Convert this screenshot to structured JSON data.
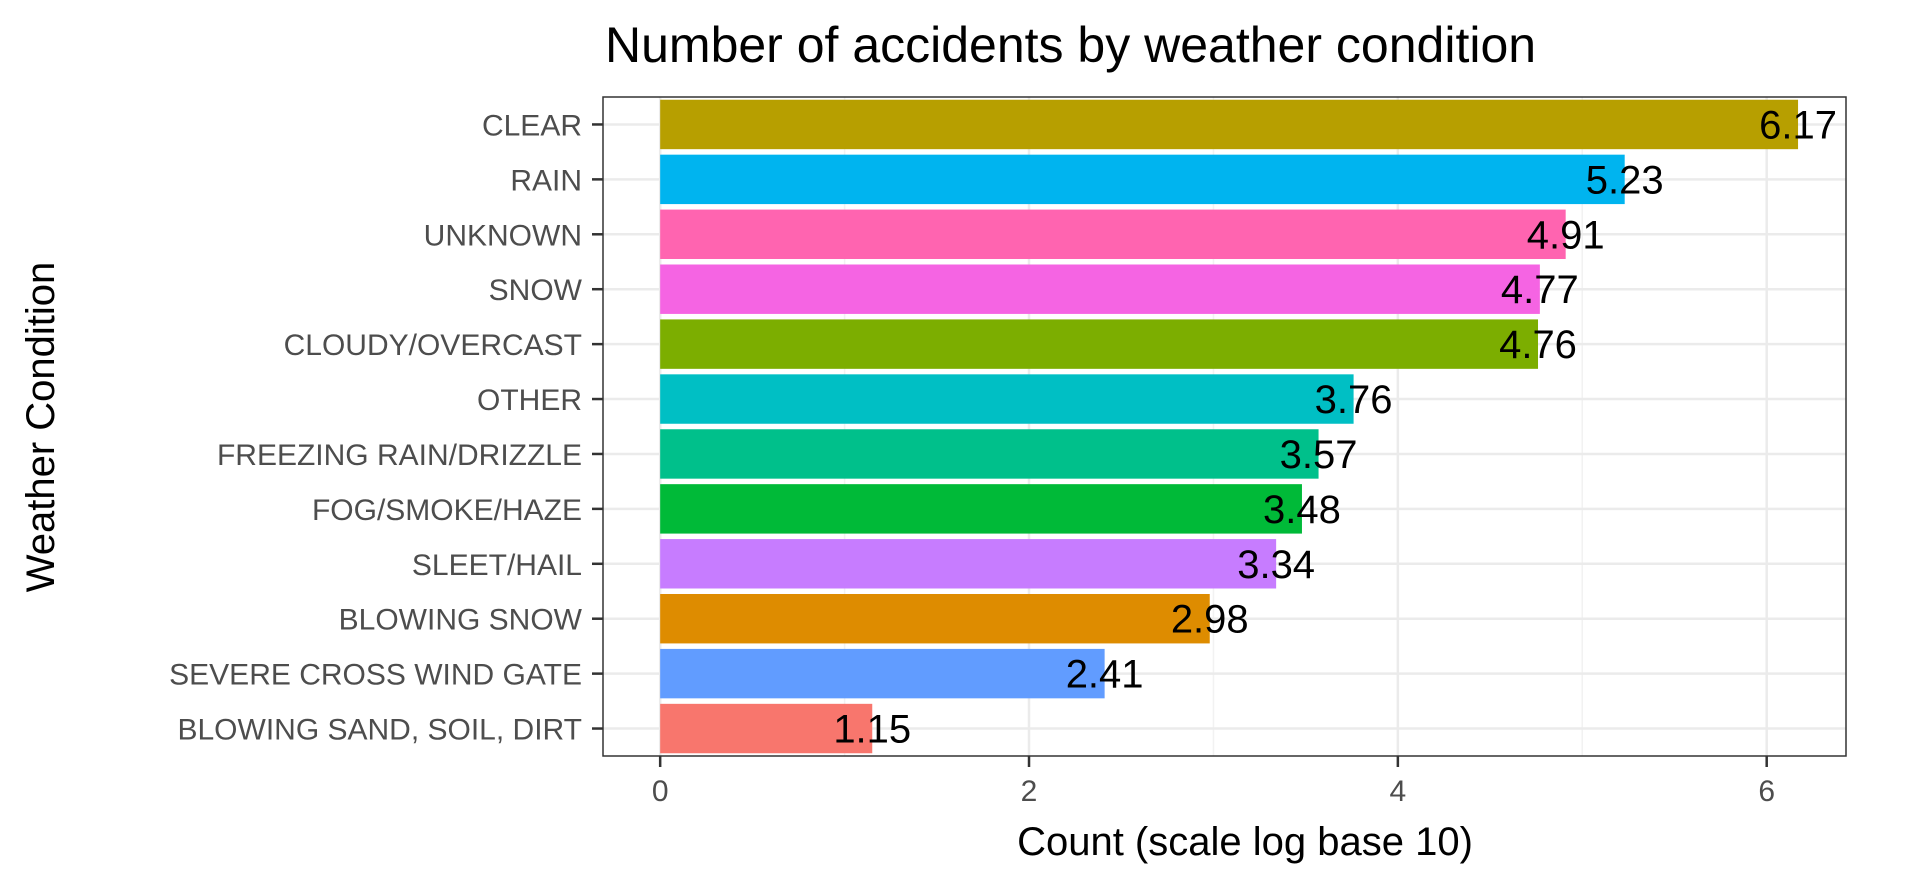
{
  "chart_data": {
    "type": "bar",
    "orientation": "horizontal",
    "title": "Number of accidents by weather condition",
    "xlabel": "Count (scale log base 10)",
    "ylabel": "Weather Condition",
    "xlim": [
      -0.31,
      6.43
    ],
    "x_ticks": [
      0,
      2,
      4,
      6
    ],
    "grid": true,
    "legend": "none",
    "categories": [
      "CLEAR",
      "RAIN",
      "UNKNOWN",
      "SNOW",
      "CLOUDY/OVERCAST",
      "OTHER",
      "FREEZING RAIN/DRIZZLE",
      "FOG/SMOKE/HAZE",
      "SLEET/HAIL",
      "BLOWING SNOW",
      "SEVERE CROSS WIND GATE",
      "BLOWING SAND, SOIL, DIRT"
    ],
    "values": [
      6.17,
      5.23,
      4.91,
      4.77,
      4.76,
      3.76,
      3.57,
      3.48,
      3.34,
      2.98,
      2.41,
      1.15
    ],
    "data_labels": [
      "6.17",
      "5.23",
      "4.91",
      "4.77",
      "4.76",
      "3.76",
      "3.57",
      "3.48",
      "3.34",
      "2.98",
      "2.41",
      "1.15"
    ],
    "colors": [
      "#B79F00",
      "#00B4EF",
      "#FF64B0",
      "#F564E3",
      "#7CAE00",
      "#00BFC4",
      "#00C08B",
      "#00BA38",
      "#C77CFF",
      "#DE8C00",
      "#619CFF",
      "#F8766D"
    ]
  }
}
